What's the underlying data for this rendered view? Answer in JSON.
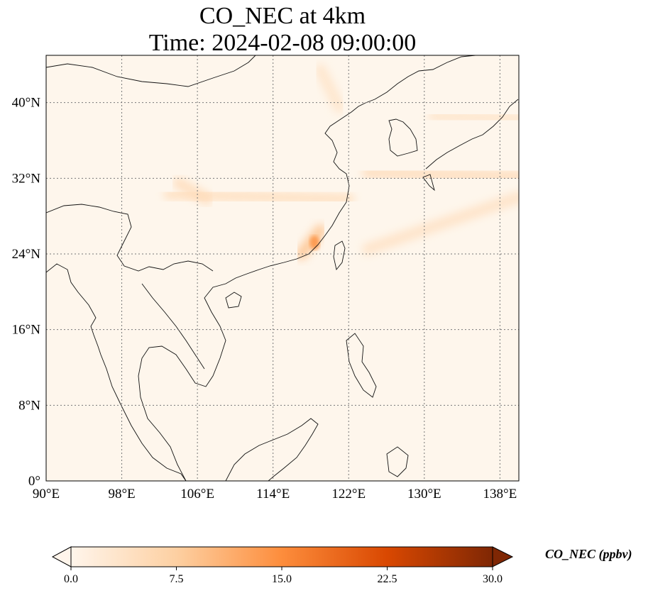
{
  "figure": {
    "title_line1": "CO_NEC at 4km",
    "title_line2": "Time: 2024-02-08 09:00:00"
  },
  "chart_data": {
    "type": "heatmap",
    "title": "CO_NEC at 4km\nTime: 2024-02-08 09:00:00",
    "projection": "lat-lon map",
    "xlim": [
      90,
      140
    ],
    "ylim": [
      0,
      45
    ],
    "x_ticks": [
      90,
      98,
      106,
      114,
      122,
      130,
      138
    ],
    "x_tick_labels": [
      "90°E",
      "98°E",
      "106°E",
      "114°E",
      "122°E",
      "130°E",
      "138°E"
    ],
    "y_ticks": [
      0,
      8,
      16,
      24,
      32,
      40
    ],
    "y_tick_labels": [
      "0°",
      "8°N",
      "16°N",
      "24°N",
      "32°N",
      "40°N"
    ],
    "grid": true,
    "colorbar": {
      "label": "CO_NEC (ppbv)",
      "range": [
        0.0,
        30.0
      ],
      "ticks": [
        0.0,
        7.5,
        15.0,
        22.5,
        30.0
      ],
      "tick_labels": [
        "0.0",
        "7.5",
        "15.0",
        "22.5",
        "30.0"
      ],
      "extend": "both",
      "colors": [
        "#fff5eb",
        "#fdd0a2",
        "#fd8d3c",
        "#d94801",
        "#7f2704"
      ]
    },
    "plumes": [
      {
        "lon": [
          103,
          122
        ],
        "lat": [
          30.3,
          29.8
        ],
        "value": 4.5
      },
      {
        "lon": [
          124,
          140
        ],
        "lat": [
          32.6,
          32.2
        ],
        "value": 5.0
      },
      {
        "lon": [
          131,
          140
        ],
        "lat": [
          38.6,
          38.3
        ],
        "value": 3.5
      },
      {
        "lon": [
          124,
          140
        ],
        "lat": [
          24.5,
          30.0
        ],
        "value": 4.0
      },
      {
        "lon": [
          119,
          121
        ],
        "lat": [
          43.5,
          39.5
        ],
        "value": 3.5
      },
      {
        "lon": [
          117,
          119
        ],
        "lat": [
          24.0,
          26.5
        ],
        "value": 9.0
      },
      {
        "lon": [
          104,
          107
        ],
        "lat": [
          31.5,
          29.8
        ],
        "value": 5.0
      }
    ],
    "max_location": {
      "lon": 118.4,
      "lat": 25.2,
      "value": 14.0
    }
  }
}
